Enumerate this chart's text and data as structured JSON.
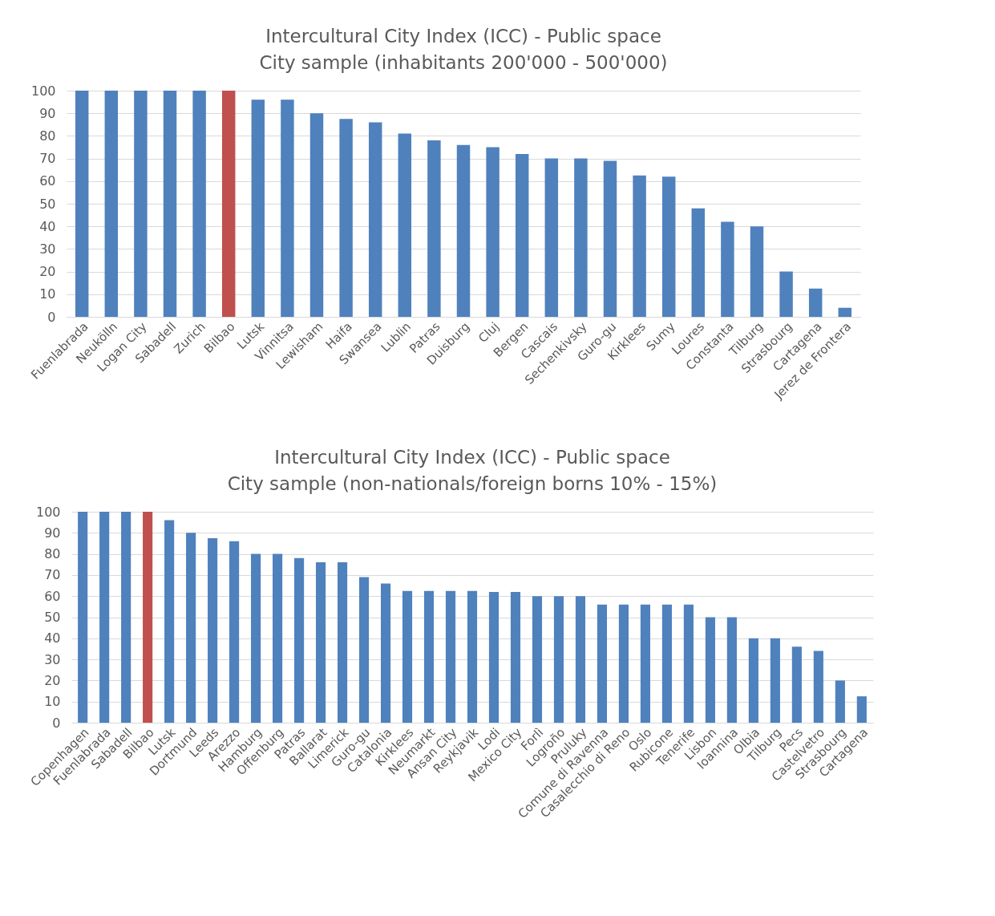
{
  "chart_data": [
    {
      "type": "bar",
      "title": "Intercultural City Index (ICC) - Public space",
      "subtitle": "City sample (inhabitants 200'000 - 500'000)",
      "categories": [
        "Fuenlabrada",
        "Neukölln",
        "Logan City",
        "Sabadell",
        "Zurich",
        "Bilbao",
        "Lutsk",
        "Vinnitsa",
        "Lewisham",
        "Haifa",
        "Swansea",
        "Lublin",
        "Patras",
        "Duisburg",
        "Cluj",
        "Bergen",
        "Cascais",
        "Sechenkivsky",
        "Guro-gu",
        "Kirklees",
        "Sumy",
        "Loures",
        "Constanta",
        "Tilburg",
        "Strasbourg",
        "Cartagena",
        "Jerez de Frontera"
      ],
      "values": [
        100,
        100,
        100,
        100,
        100,
        100,
        96,
        96,
        90,
        87.5,
        86,
        81,
        78,
        76,
        75,
        72,
        70,
        70,
        69,
        62.5,
        62,
        48,
        42,
        40,
        20,
        12.5,
        4
      ],
      "colors": [
        "#4f81bd",
        "#4f81bd",
        "#4f81bd",
        "#4f81bd",
        "#4f81bd",
        "#c0504d",
        "#4f81bd",
        "#4f81bd",
        "#4f81bd",
        "#4f81bd",
        "#4f81bd",
        "#4f81bd",
        "#4f81bd",
        "#4f81bd",
        "#4f81bd",
        "#4f81bd",
        "#4f81bd",
        "#4f81bd",
        "#4f81bd",
        "#4f81bd",
        "#4f81bd",
        "#4f81bd",
        "#4f81bd",
        "#4f81bd",
        "#4f81bd",
        "#4f81bd",
        "#4f81bd"
      ],
      "ylim": [
        0,
        100
      ],
      "yticks": [
        0,
        10,
        20,
        30,
        40,
        50,
        60,
        70,
        80,
        90,
        100
      ],
      "grid": "y"
    },
    {
      "type": "bar",
      "title": "Intercultural City Index (ICC) - Public space",
      "subtitle": "City sample (non-nationals/foreign borns 10% - 15%)",
      "categories": [
        "Copenhagen",
        "Fuenlabrada",
        "Sabadell",
        "Bilbao",
        "Lutsk",
        "Dortmund",
        "Leeds",
        "Arezzo",
        "Hamburg",
        "Offenburg",
        "Patras",
        "Ballarat",
        "Limerick",
        "Guro-gu",
        "Catalonia",
        "Kirklees",
        "Neumarkt",
        "Ansan City",
        "Reykjavik",
        "Lodi",
        "Mexico City",
        "Forlì",
        "Logroño",
        "Pruluky",
        "Comune di Ravenna",
        "Casalecchio di Reno",
        "Oslo",
        "Rubicone",
        "Tenerife",
        "Lisbon",
        "Ioannina",
        "Olbia",
        "Tilburg",
        "Pecs",
        "Castelvetro",
        "Strasbourg",
        "Cartagena"
      ],
      "values": [
        100,
        100,
        100,
        100,
        96,
        90,
        87.5,
        86,
        80,
        80,
        78,
        76,
        76,
        69,
        66,
        62.5,
        62.5,
        62.5,
        62.5,
        62,
        62,
        60,
        60,
        60,
        56,
        56,
        56,
        56,
        56,
        50,
        50,
        40,
        40,
        36,
        34,
        20,
        12.5
      ],
      "colors": [
        "#4f81bd",
        "#4f81bd",
        "#4f81bd",
        "#c0504d",
        "#4f81bd",
        "#4f81bd",
        "#4f81bd",
        "#4f81bd",
        "#4f81bd",
        "#4f81bd",
        "#4f81bd",
        "#4f81bd",
        "#4f81bd",
        "#4f81bd",
        "#4f81bd",
        "#4f81bd",
        "#4f81bd",
        "#4f81bd",
        "#4f81bd",
        "#4f81bd",
        "#4f81bd",
        "#4f81bd",
        "#4f81bd",
        "#4f81bd",
        "#4f81bd",
        "#4f81bd",
        "#4f81bd",
        "#4f81bd",
        "#4f81bd",
        "#4f81bd",
        "#4f81bd",
        "#4f81bd",
        "#4f81bd",
        "#4f81bd",
        "#4f81bd",
        "#4f81bd",
        "#4f81bd"
      ],
      "ylim": [
        0,
        100
      ],
      "yticks": [
        0,
        10,
        20,
        30,
        40,
        50,
        60,
        70,
        80,
        90,
        100
      ],
      "grid": "y"
    }
  ]
}
